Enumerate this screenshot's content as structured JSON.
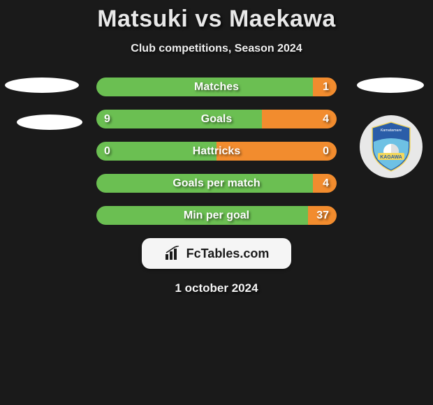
{
  "title": "Matsuki vs Maekawa",
  "subtitle": "Club competitions, Season 2024",
  "date": "1 october 2024",
  "logo_text": "FcTables.com",
  "colors": {
    "left_bar": "#6bbf52",
    "right_bar": "#f28c2e",
    "background": "#1a1a1a",
    "text": "#ffffff"
  },
  "rows": [
    {
      "label": "Matches",
      "left_val": "",
      "right_val": "1",
      "left_pct": 90,
      "right_pct": 10
    },
    {
      "label": "Goals",
      "left_val": "9",
      "right_val": "4",
      "left_pct": 69,
      "right_pct": 31
    },
    {
      "label": "Hattricks",
      "left_val": "0",
      "right_val": "0",
      "left_pct": 50,
      "right_pct": 50
    },
    {
      "label": "Goals per match",
      "left_val": "",
      "right_val": "4",
      "left_pct": 90,
      "right_pct": 10
    },
    {
      "label": "Min per goal",
      "left_val": "",
      "right_val": "37",
      "left_pct": 88,
      "right_pct": 12
    }
  ],
  "badge": {
    "top_text": "Kamatamare",
    "bottom_text": "KAGAWA",
    "shield_top_color": "#2a5da8",
    "shield_bottom_color": "#6ec1e4",
    "accent_color": "#f5d85a"
  },
  "fontsize": {
    "title": 34,
    "subtitle": 16,
    "row_label": 16,
    "row_value": 16,
    "date": 17,
    "logo": 18
  }
}
